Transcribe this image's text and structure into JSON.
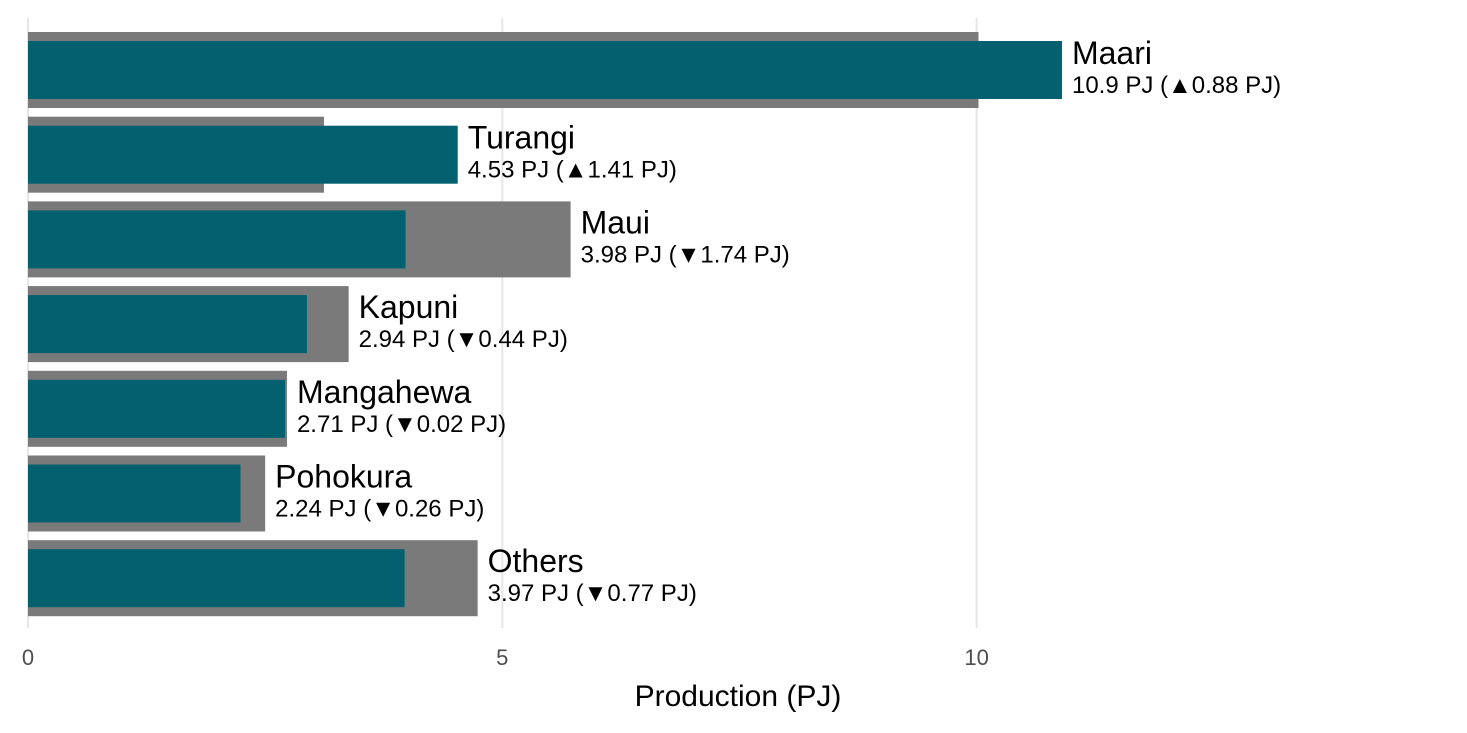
{
  "chart_data": {
    "type": "bar",
    "orientation": "horizontal",
    "title": "",
    "xlabel": "Production (PJ)",
    "ylabel": "",
    "xlim": [
      0,
      14.5
    ],
    "x_ticks": [
      0,
      5,
      10
    ],
    "x_tick_labels": [
      "0",
      "5",
      "10"
    ],
    "grid": "vertical major lines",
    "legend": "none",
    "categories": [
      "Maari",
      "Turangi",
      "Maui",
      "Kapuni",
      "Mangahewa",
      "Pohokura",
      "Others"
    ],
    "series": [
      {
        "role": "previous",
        "values": [
          10.02,
          3.12,
          5.72,
          3.38,
          2.73,
          2.5,
          4.74
        ]
      },
      {
        "role": "current",
        "values": [
          10.9,
          4.53,
          3.98,
          2.94,
          2.71,
          2.24,
          3.97
        ]
      }
    ],
    "value_labels": [
      "10.9 PJ (▲0.88 PJ)",
      "4.53 PJ (▲1.41 PJ)",
      "3.98 PJ (▼1.74 PJ)",
      "2.94 PJ (▼0.44 PJ)",
      "2.71 PJ (▼0.02 PJ)",
      "2.24 PJ (▼0.26 PJ)",
      "3.97 PJ (▼0.77 PJ)"
    ],
    "colors": {
      "previous": "#7a7a7a",
      "current": "#03606f",
      "grid": "#e6e6e6"
    }
  }
}
